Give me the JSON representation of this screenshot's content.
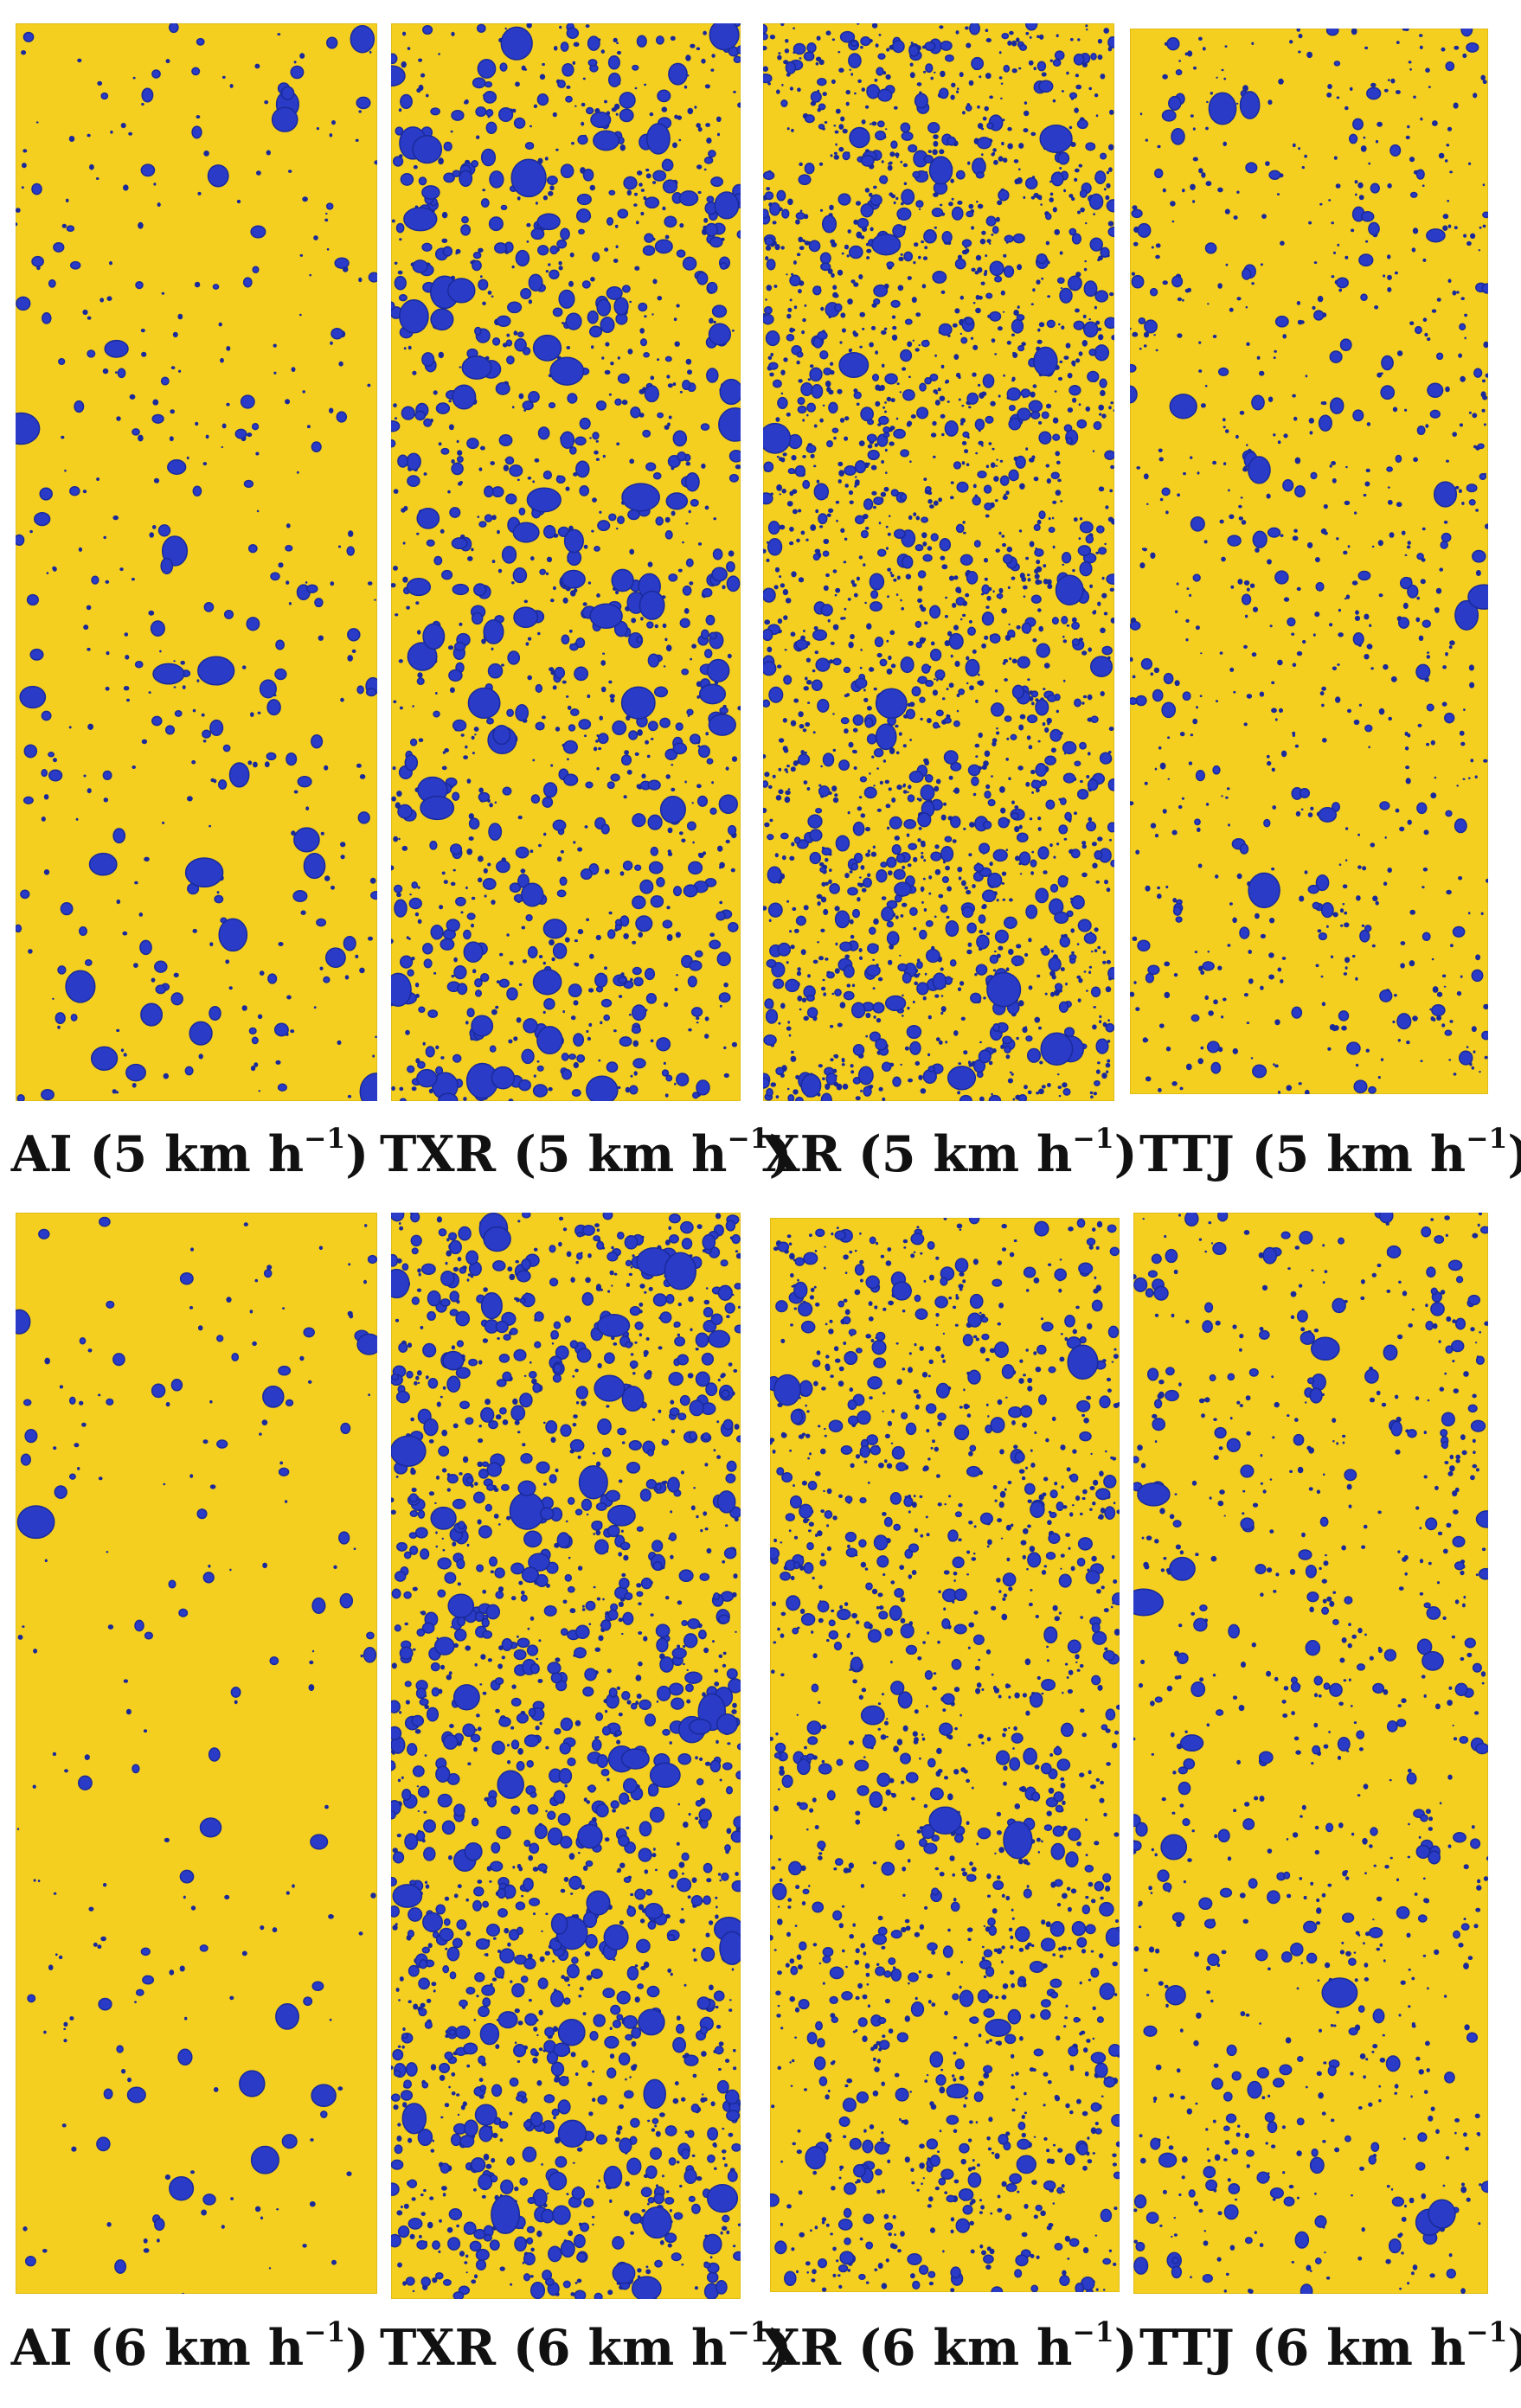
{
  "figure": {
    "colors": {
      "card": "#f5cf20",
      "card_edge": "#e0b800",
      "droplet_blue": "#2a3bc8",
      "droplet_dark": "#1a2a9a",
      "label": "#111111"
    },
    "rows": [
      {
        "panels": [
          {
            "nozzle": "AI",
            "speed": "5",
            "unit": "km h",
            "exp": "−1",
            "droplets": {
              "big": 30,
              "med": 120,
              "small": 250,
              "seed": 11
            }
          },
          {
            "nozzle": "TXR",
            "speed": "5",
            "unit": "km h",
            "exp": "−1",
            "droplets": {
              "big": 90,
              "med": 520,
              "small": 700,
              "seed": 23
            }
          },
          {
            "nozzle": "XR",
            "speed": "5",
            "unit": "km h",
            "exp": "−1",
            "droplets": {
              "big": 20,
              "med": 650,
              "small": 1600,
              "seed": 37
            }
          },
          {
            "nozzle": "TTJ",
            "speed": "5",
            "unit": "km h",
            "exp": "−1",
            "droplets": {
              "big": 12,
              "med": 150,
              "small": 650,
              "seed": 41
            }
          }
        ]
      },
      {
        "panels": [
          {
            "nozzle": "AI",
            "speed": "6",
            "unit": "km h",
            "exp": "−1",
            "droplets": {
              "big": 14,
              "med": 60,
              "small": 130,
              "seed": 53
            }
          },
          {
            "nozzle": "TXR",
            "speed": "6",
            "unit": "km h",
            "exp": "−1",
            "droplets": {
              "big": 70,
              "med": 800,
              "small": 900,
              "seed": 67
            }
          },
          {
            "nozzle": "XR",
            "speed": "6",
            "unit": "km h",
            "exp": "−1",
            "droplets": {
              "big": 12,
              "med": 420,
              "small": 1100,
              "seed": 71
            }
          },
          {
            "nozzle": "TTJ",
            "speed": "6",
            "unit": "km h",
            "exp": "−1",
            "droplets": {
              "big": 18,
              "med": 220,
              "small": 600,
              "seed": 89
            }
          }
        ]
      }
    ]
  }
}
